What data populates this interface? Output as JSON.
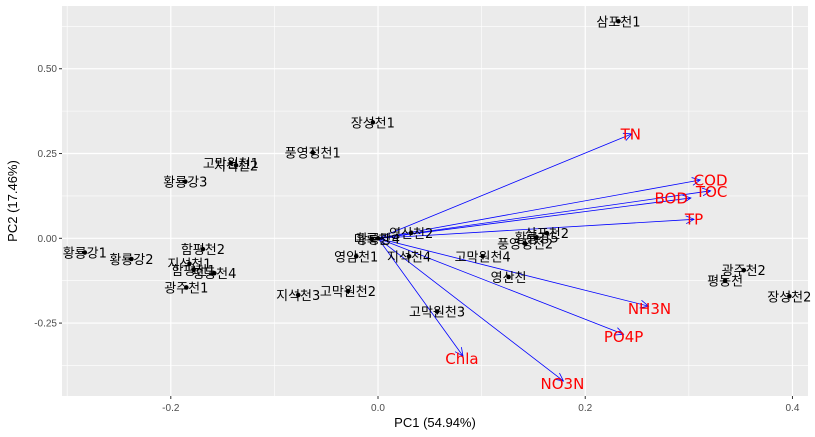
{
  "chart_data": {
    "type": "scatter",
    "subtype": "pca-biplot",
    "xlabel": "PC1 (54.94%)",
    "ylabel": "PC2 (17.46%)",
    "xlim": [
      -0.305,
      0.415
    ],
    "ylim": [
      -0.465,
      0.685
    ],
    "x_ticks": [
      -0.2,
      0.0,
      0.2,
      0.4
    ],
    "x_tick_labels": [
      "-0.2",
      "0.0",
      "0.2",
      "0.4"
    ],
    "y_ticks": [
      0.5,
      0.25,
      0.0,
      -0.25
    ],
    "y_tick_labels": [
      "0.50",
      "0.25",
      "0.00",
      "-0.25"
    ],
    "grid": true,
    "background": "#ebebeb",
    "point_color": "#000000",
    "arrow_color": "#0000ff",
    "variable_label_color": "#ff0000",
    "points": [
      {
        "label": "삼포천1",
        "x": 0.232,
        "y": 0.64
      },
      {
        "label": "장성천1",
        "x": -0.005,
        "y": 0.342
      },
      {
        "label": "풍영정천1",
        "x": -0.063,
        "y": 0.253
      },
      {
        "label": "고막원천1",
        "x": -0.142,
        "y": 0.222
      },
      {
        "label": "지석천2",
        "x": -0.137,
        "y": 0.215
      },
      {
        "label": "황룡강3",
        "x": -0.186,
        "y": 0.167
      },
      {
        "label": "황룡강4",
        "x": 0.0,
        "y": 0.0
      },
      {
        "label": "영산천2",
        "x": 0.032,
        "y": 0.016
      },
      {
        "label": "마륵천",
        "x": -0.006,
        "y": -0.002
      },
      {
        "label": "삼포천2",
        "x": 0.163,
        "y": 0.015
      },
      {
        "label": "황룡강5",
        "x": 0.153,
        "y": 0.003
      },
      {
        "label": "풍영정천2",
        "x": 0.142,
        "y": -0.016
      },
      {
        "label": "고막원천4",
        "x": 0.101,
        "y": -0.053
      },
      {
        "label": "영암천1",
        "x": -0.021,
        "y": -0.053
      },
      {
        "label": "지석천4",
        "x": 0.03,
        "y": -0.053
      },
      {
        "label": "영산천",
        "x": 0.126,
        "y": -0.114
      },
      {
        "label": "황룡강1",
        "x": -0.283,
        "y": -0.042
      },
      {
        "label": "황룡강2",
        "x": -0.238,
        "y": -0.061
      },
      {
        "label": "함평천2",
        "x": -0.169,
        "y": -0.032
      },
      {
        "label": "지석천1",
        "x": -0.182,
        "y": -0.075
      },
      {
        "label": "함평천1",
        "x": -0.178,
        "y": -0.093
      },
      {
        "label": "평동천4",
        "x": -0.158,
        "y": -0.103
      },
      {
        "label": "광주천1",
        "x": -0.185,
        "y": -0.145
      },
      {
        "label": "지석천3",
        "x": -0.077,
        "y": -0.167
      },
      {
        "label": "고막원천2",
        "x": -0.029,
        "y": -0.156
      },
      {
        "label": "고막원천3",
        "x": 0.057,
        "y": -0.216
      },
      {
        "label": "광주천2",
        "x": 0.353,
        "y": -0.094
      },
      {
        "label": "평동천",
        "x": 0.335,
        "y": -0.125
      },
      {
        "label": "장성천2",
        "x": 0.397,
        "y": -0.171
      }
    ],
    "loadings": [
      {
        "name": "TN",
        "x": 0.245,
        "y": 0.308
      },
      {
        "name": "COD",
        "x": 0.311,
        "y": 0.172
      },
      {
        "name": "TOC",
        "x": 0.321,
        "y": 0.14
      },
      {
        "name": "BOD",
        "x": 0.302,
        "y": 0.119
      },
      {
        "name": "TP",
        "x": 0.305,
        "y": 0.056
      },
      {
        "name": "NH3N",
        "x": 0.261,
        "y": -0.2
      },
      {
        "name": "PO4P",
        "x": 0.237,
        "y": -0.283
      },
      {
        "name": "NO3N",
        "x": 0.179,
        "y": -0.421
      },
      {
        "name": "Chla",
        "x": 0.082,
        "y": -0.347
      }
    ],
    "loading_labels": [
      {
        "name": "TN",
        "x": 0.244,
        "y": 0.308
      },
      {
        "name": "COD",
        "x": 0.321,
        "y": 0.172
      },
      {
        "name": "TOC",
        "x": 0.322,
        "y": 0.138
      },
      {
        "name": "BOD",
        "x": 0.283,
        "y": 0.119
      },
      {
        "name": "TP",
        "x": 0.305,
        "y": 0.057
      },
      {
        "name": "NH3N",
        "x": 0.262,
        "y": -0.207
      },
      {
        "name": "PO4P",
        "x": 0.237,
        "y": -0.29
      },
      {
        "name": "NO3N",
        "x": 0.178,
        "y": -0.428
      },
      {
        "name": "Chla",
        "x": 0.081,
        "y": -0.355
      }
    ]
  }
}
